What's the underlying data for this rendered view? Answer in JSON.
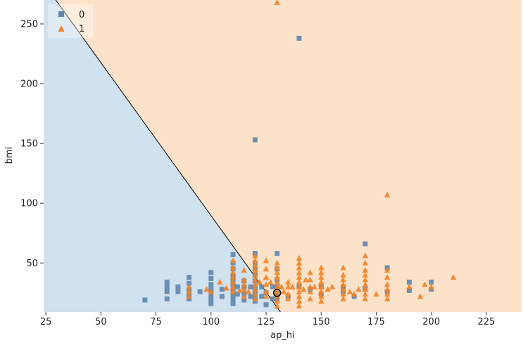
{
  "chart_data": {
    "type": "scatter",
    "title": "",
    "xlabel": "ap_hi",
    "ylabel": "bmi",
    "xlim": [
      24,
      241
    ],
    "ylim": [
      9,
      270
    ],
    "xticks": [
      25,
      50,
      75,
      100,
      125,
      150,
      175,
      200,
      225
    ],
    "yticks": [
      50,
      100,
      150,
      200,
      250
    ],
    "grid": false,
    "legend_position": "top-left",
    "decision_boundary": {
      "points": [
        [
          29.5,
          270
        ],
        [
          131.5,
          9
        ]
      ],
      "region_colors": {
        "0": "#d0e1ef",
        "1": "#fde2ca"
      }
    },
    "highlighted_point": {
      "x": 130,
      "y": 25
    },
    "series": [
      {
        "name": "0",
        "marker": "square",
        "color": "#5f86ad",
        "points": [
          [
            70,
            19
          ],
          [
            80,
            20
          ],
          [
            80,
            26
          ],
          [
            80,
            30
          ],
          [
            80,
            34
          ],
          [
            85,
            26
          ],
          [
            85,
            30
          ],
          [
            90,
            20
          ],
          [
            90,
            24
          ],
          [
            90,
            28
          ],
          [
            90,
            33
          ],
          [
            90,
            38
          ],
          [
            95,
            26
          ],
          [
            100,
            16
          ],
          [
            100,
            20
          ],
          [
            100,
            24
          ],
          [
            100,
            28
          ],
          [
            100,
            32
          ],
          [
            100,
            37
          ],
          [
            100,
            42
          ],
          [
            105,
            22
          ],
          [
            105,
            28
          ],
          [
            110,
            16
          ],
          [
            110,
            20
          ],
          [
            110,
            24
          ],
          [
            110,
            28
          ],
          [
            110,
            32
          ],
          [
            110,
            36
          ],
          [
            110,
            40
          ],
          [
            110,
            45
          ],
          [
            110,
            50
          ],
          [
            110,
            57
          ],
          [
            112,
            24
          ],
          [
            112,
            30
          ],
          [
            115,
            19
          ],
          [
            115,
            24
          ],
          [
            115,
            30
          ],
          [
            115,
            35
          ],
          [
            118,
            22
          ],
          [
            118,
            30
          ],
          [
            120,
            18
          ],
          [
            120,
            22
          ],
          [
            120,
            26
          ],
          [
            120,
            30
          ],
          [
            120,
            35
          ],
          [
            120,
            40
          ],
          [
            120,
            45
          ],
          [
            120,
            50
          ],
          [
            120,
            58
          ],
          [
            120,
            153
          ],
          [
            123,
            22
          ],
          [
            123,
            30
          ],
          [
            125,
            15
          ],
          [
            125,
            25
          ],
          [
            128,
            20
          ],
          [
            128,
            30
          ],
          [
            130,
            20
          ],
          [
            130,
            25
          ],
          [
            130,
            30
          ],
          [
            130,
            36
          ],
          [
            130,
            45
          ],
          [
            130,
            58
          ],
          [
            135,
            22
          ],
          [
            140,
            30
          ],
          [
            140,
            238
          ],
          [
            145,
            28
          ],
          [
            150,
            24
          ],
          [
            150,
            30
          ],
          [
            160,
            26
          ],
          [
            160,
            30
          ],
          [
            165,
            22
          ],
          [
            170,
            28
          ],
          [
            170,
            66
          ],
          [
            180,
            26
          ],
          [
            180,
            46
          ],
          [
            190,
            27
          ],
          [
            190,
            34
          ],
          [
            200,
            28
          ],
          [
            200,
            34
          ]
        ]
      },
      {
        "name": "1",
        "marker": "triangle",
        "color": "#f58220",
        "points": [
          [
            90,
            22
          ],
          [
            90,
            26
          ],
          [
            90,
            30
          ],
          [
            98,
            28
          ],
          [
            100,
            26
          ],
          [
            104,
            34
          ],
          [
            107,
            29
          ],
          [
            110,
            26
          ],
          [
            110,
            30
          ],
          [
            110,
            34
          ],
          [
            110,
            38
          ],
          [
            110,
            42
          ],
          [
            110,
            46
          ],
          [
            110,
            52
          ],
          [
            113,
            27
          ],
          [
            115,
            22
          ],
          [
            115,
            28
          ],
          [
            115,
            32
          ],
          [
            115,
            36
          ],
          [
            115,
            44
          ],
          [
            117,
            26
          ],
          [
            120,
            20
          ],
          [
            120,
            24
          ],
          [
            120,
            28
          ],
          [
            120,
            32
          ],
          [
            120,
            36
          ],
          [
            120,
            40
          ],
          [
            120,
            44
          ],
          [
            120,
            48
          ],
          [
            120,
            52
          ],
          [
            120,
            56
          ],
          [
            122,
            34
          ],
          [
            125,
            22
          ],
          [
            125,
            26
          ],
          [
            125,
            32
          ],
          [
            125,
            38
          ],
          [
            125,
            45
          ],
          [
            125,
            52
          ],
          [
            127,
            34
          ],
          [
            130,
            14
          ],
          [
            130,
            18
          ],
          [
            130,
            22
          ],
          [
            130,
            26
          ],
          [
            130,
            30
          ],
          [
            130,
            34
          ],
          [
            130,
            38
          ],
          [
            130,
            42
          ],
          [
            130,
            46
          ],
          [
            130,
            50
          ],
          [
            130,
            268
          ],
          [
            132,
            30
          ],
          [
            133,
            26
          ],
          [
            135,
            20
          ],
          [
            135,
            24
          ],
          [
            135,
            30
          ],
          [
            135,
            34
          ],
          [
            137,
            30
          ],
          [
            140,
            14
          ],
          [
            140,
            18
          ],
          [
            140,
            22
          ],
          [
            140,
            26
          ],
          [
            140,
            30
          ],
          [
            140,
            34
          ],
          [
            140,
            38
          ],
          [
            140,
            42
          ],
          [
            140,
            46
          ],
          [
            140,
            50
          ],
          [
            140,
            54
          ],
          [
            142,
            28
          ],
          [
            143,
            36
          ],
          [
            145,
            20
          ],
          [
            145,
            26
          ],
          [
            145,
            30
          ],
          [
            145,
            36
          ],
          [
            145,
            42
          ],
          [
            147,
            30
          ],
          [
            150,
            18
          ],
          [
            150,
            22
          ],
          [
            150,
            26
          ],
          [
            150,
            30
          ],
          [
            150,
            34
          ],
          [
            150,
            38
          ],
          [
            150,
            42
          ],
          [
            150,
            46
          ],
          [
            153,
            28
          ],
          [
            155,
            30
          ],
          [
            160,
            20
          ],
          [
            160,
            24
          ],
          [
            160,
            28
          ],
          [
            160,
            32
          ],
          [
            160,
            36
          ],
          [
            160,
            40
          ],
          [
            160,
            46
          ],
          [
            163,
            26
          ],
          [
            165,
            24
          ],
          [
            167,
            28
          ],
          [
            170,
            20
          ],
          [
            170,
            24
          ],
          [
            170,
            28
          ],
          [
            170,
            32
          ],
          [
            170,
            36
          ],
          [
            170,
            40
          ],
          [
            170,
            44
          ],
          [
            170,
            50
          ],
          [
            170,
            56
          ],
          [
            175,
            24
          ],
          [
            180,
            20
          ],
          [
            180,
            24
          ],
          [
            180,
            28
          ],
          [
            180,
            32
          ],
          [
            180,
            38
          ],
          [
            180,
            44
          ],
          [
            180,
            107
          ],
          [
            190,
            30
          ],
          [
            195,
            22
          ],
          [
            197,
            32
          ],
          [
            200,
            30
          ],
          [
            210,
            38
          ]
        ]
      }
    ]
  }
}
